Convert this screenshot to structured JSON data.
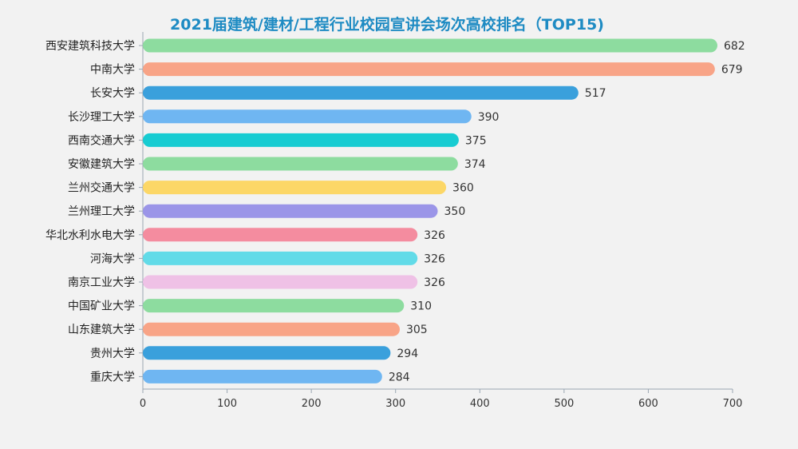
{
  "chart_data": {
    "type": "bar",
    "orientation": "horizontal",
    "title": "2021届建筑/建材/工程行业校园宣讲会场次高校排名（TOP15)",
    "categories": [
      "西安建筑科技大学",
      "中南大学",
      "长安大学",
      "长沙理工大学",
      "西南交通大学",
      "安徽建筑大学",
      "兰州交通大学",
      "兰州理工大学",
      "华北水利水电大学",
      "河海大学",
      "南京工业大学",
      "中国矿业大学",
      "山东建筑大学",
      "贵州大学",
      "重庆大学"
    ],
    "values": [
      682,
      679,
      517,
      390,
      375,
      374,
      360,
      350,
      326,
      326,
      326,
      310,
      305,
      294,
      284
    ],
    "bar_colors": [
      "#8ddc9f",
      "#f8a487",
      "#3aa0dc",
      "#6fb6f2",
      "#17ccd2",
      "#8ddc9f",
      "#fcd767",
      "#9b95e8",
      "#f48c9f",
      "#62dbe8",
      "#efc1e6",
      "#8ddc9f",
      "#f8a487",
      "#3aa0dc",
      "#6fb6f2"
    ],
    "xlim": [
      0,
      700
    ],
    "xticks": [
      0,
      100,
      200,
      300,
      400,
      500,
      600,
      700
    ],
    "xlabel": "",
    "ylabel": "",
    "grid": false,
    "title_color": "#1e8bc3"
  }
}
